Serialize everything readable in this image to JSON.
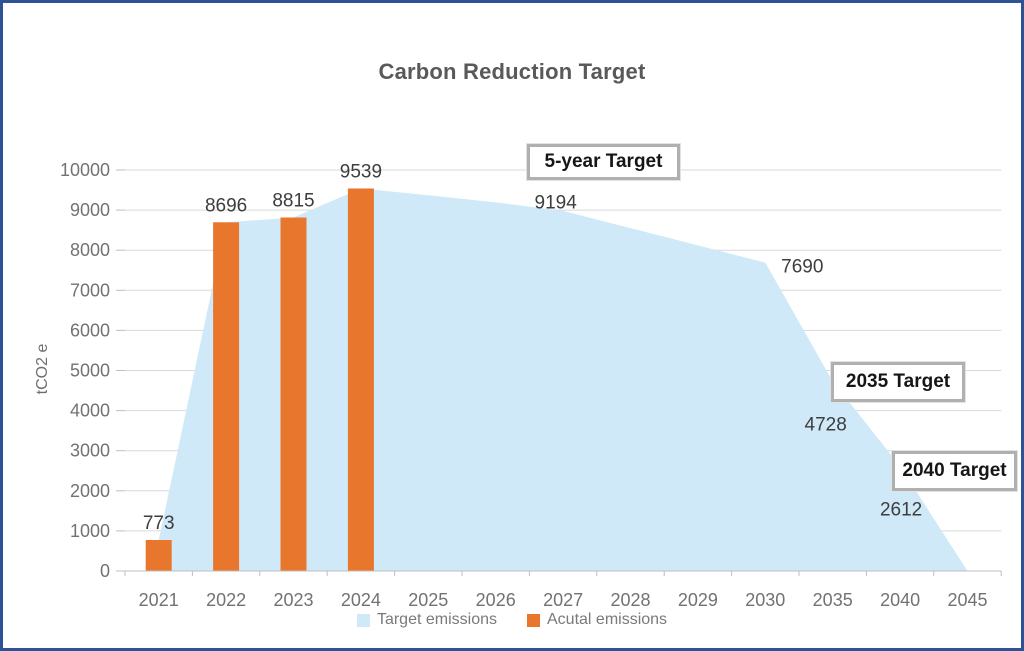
{
  "frame": {
    "border_color": "#2d5296",
    "background_color": "#ffffff"
  },
  "chart_data": {
    "type": "area+bar",
    "title": "Carbon Reduction Target",
    "xlabel": "",
    "ylabel": "tCO2 e",
    "ylim": [
      0,
      10000
    ],
    "ytick_step": 1000,
    "grid": true,
    "legend_position": "bottom",
    "categories": [
      "2021",
      "2022",
      "2023",
      "2024",
      "2025",
      "2026",
      "2027",
      "2028",
      "2029",
      "2030",
      "2035",
      "2040",
      "2045"
    ],
    "series": [
      {
        "name": "Target emissions",
        "type": "area",
        "color": "#cfe9f8",
        "values": [
          773,
          8696,
          8815,
          9539,
          9370,
          9194,
          8980,
          8550,
          8120,
          7690,
          4728,
          2612,
          0
        ],
        "labeled_points": [
          {
            "category": "2026",
            "value": 9194
          },
          {
            "category": "2030",
            "value": 7690
          },
          {
            "category": "2035",
            "value": 4728
          },
          {
            "category": "2040",
            "value": 2612
          }
        ]
      },
      {
        "name": "Acutal emissions",
        "type": "bar",
        "color": "#e9762d",
        "values": [
          773,
          8696,
          8815,
          9539,
          null,
          null,
          null,
          null,
          null,
          null,
          null,
          null,
          null
        ],
        "labeled_points": [
          {
            "category": "2021",
            "value": 773
          },
          {
            "category": "2022",
            "value": 8696
          },
          {
            "category": "2023",
            "value": 8815
          },
          {
            "category": "2024",
            "value": 9539
          }
        ]
      }
    ],
    "annotations": [
      {
        "text": "5-year Target"
      },
      {
        "text": "2035 Target"
      },
      {
        "text": "2040 Target"
      }
    ],
    "colors": {
      "gridline": "#d9d9d9",
      "axis_line": "#bfbfbf",
      "tick_text": "#727272",
      "data_label_text": "#3d3d3d",
      "title_text": "#595959",
      "legend_text": "#7a7a7a"
    }
  }
}
